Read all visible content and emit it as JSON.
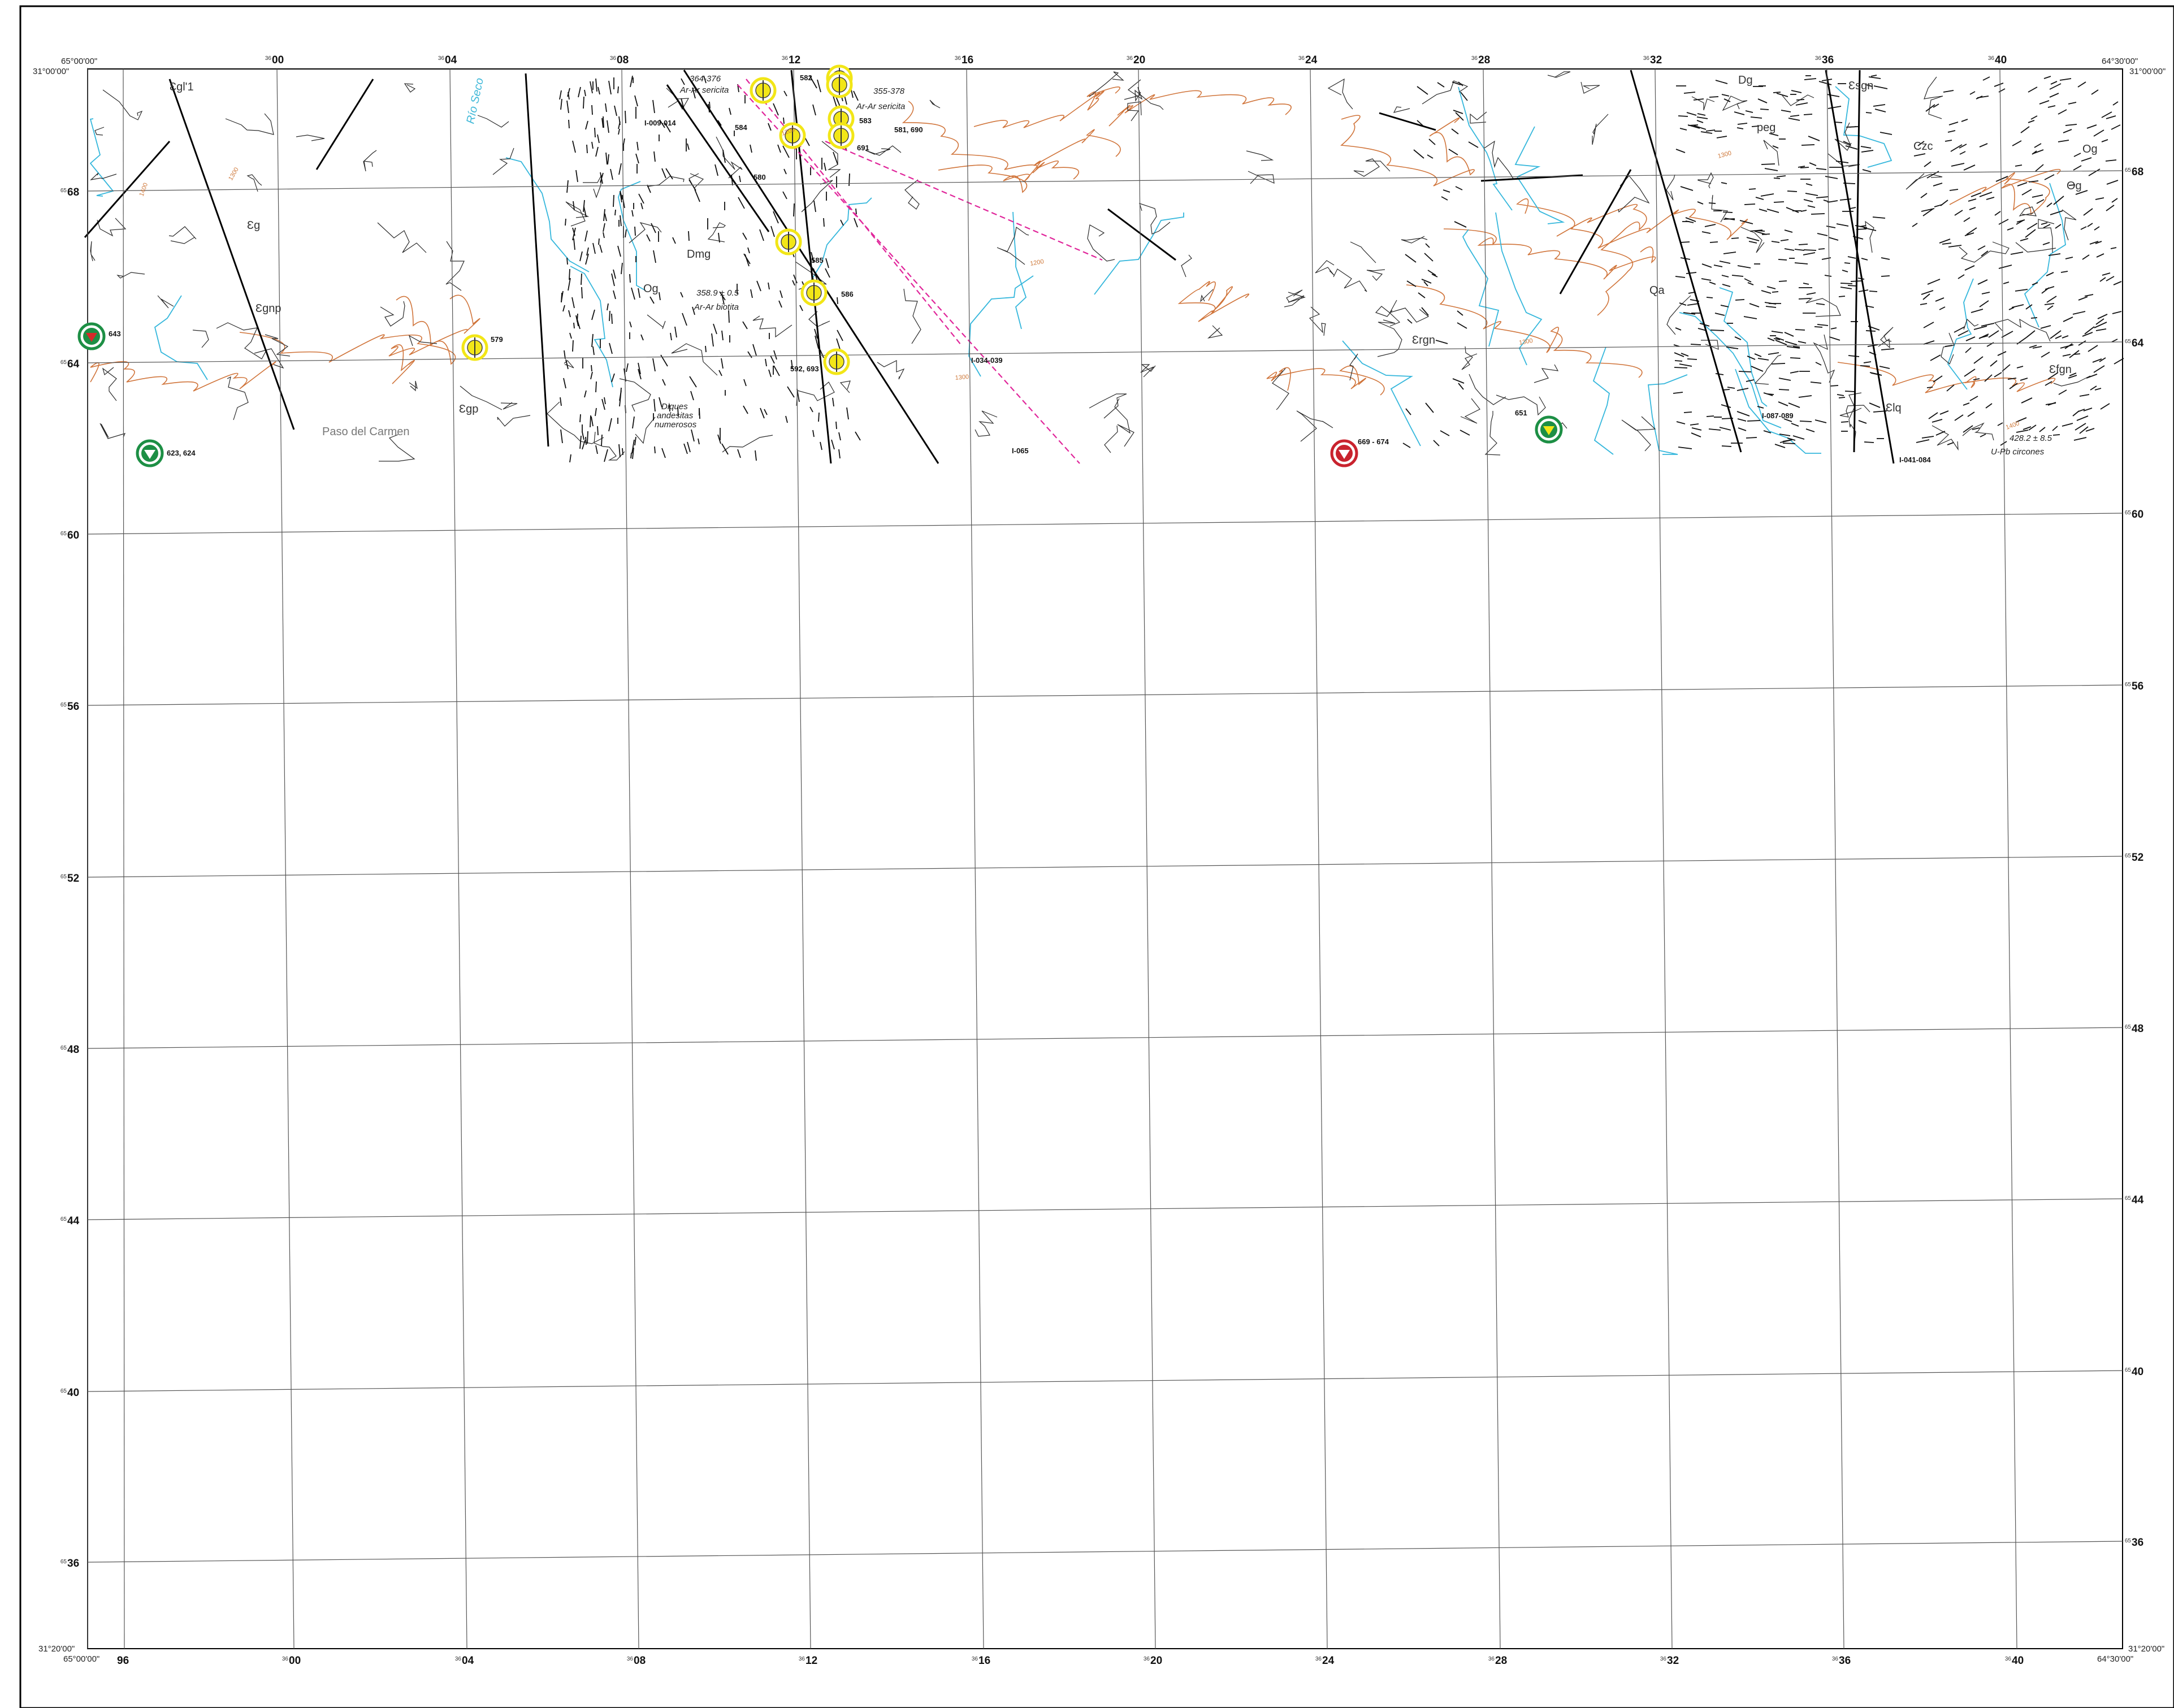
{
  "map": {
    "corner_coords": {
      "top_left_lon": "65°00'00\"",
      "top_left_lat": "31°00'00\"",
      "top_right_lon": "64°30'00\"",
      "top_right_lat": "31°00'00\"",
      "bottom_left_lat": "31°20'00\"",
      "bottom_left_lon": "65°00'00\"",
      "bottom_right_lat": "31°20'00\"",
      "bottom_right_lon": "64°30'00\""
    },
    "easting_prefix": "36",
    "northing_prefix": "65",
    "eastings_top": [
      "00",
      "04",
      "08",
      "12",
      "16",
      "20",
      "24",
      "28",
      "32",
      "36",
      "40"
    ],
    "eastings_bottom": [
      "96",
      "00",
      "04",
      "08",
      "12",
      "16",
      "20",
      "24",
      "28",
      "32",
      "36",
      "40"
    ],
    "northings": [
      "68",
      "64",
      "60",
      "56",
      "52",
      "48",
      "44",
      "40",
      "36"
    ],
    "units": [
      {
        "id": "cg1",
        "text": "Ɛgl'1"
      },
      {
        "id": "cg",
        "text": "Ɛg"
      },
      {
        "id": "cgnp",
        "text": "Ɛgnp"
      },
      {
        "id": "cgp",
        "text": "Ɛgp"
      },
      {
        "id": "dmg",
        "text": "Dmg"
      },
      {
        "id": "og",
        "text": "Og"
      },
      {
        "id": "crgn",
        "text": "Ɛrgn"
      },
      {
        "id": "csgn",
        "text": "Ɛsgn"
      },
      {
        "id": "czc",
        "text": "Czc"
      },
      {
        "id": "peg",
        "text": "peg"
      },
      {
        "id": "og2",
        "text": "Og"
      },
      {
        "id": "cfgn",
        "text": "Ɛfgn"
      },
      {
        "id": "clq",
        "text": "Ɛlq"
      },
      {
        "id": "dg",
        "text": "Dg"
      },
      {
        "id": "og3",
        "text": "Og"
      },
      {
        "id": "qa",
        "text": "Qa"
      }
    ],
    "places": [
      {
        "id": "paso-carmen",
        "text": "Paso del Carmen"
      }
    ],
    "rivers": [
      {
        "id": "rio-seco",
        "text": "Río Seco"
      }
    ],
    "annotations": [
      {
        "id": "diques",
        "lines": [
          "Diques",
          "andesitas",
          "numerosos"
        ]
      },
      {
        "id": "age1",
        "text": "364-376"
      },
      {
        "id": "age1b",
        "text": "Ar-Ar  sericita"
      },
      {
        "id": "age2",
        "text": "355-378"
      },
      {
        "id": "age2b",
        "text": "Ar-Ar  sericita"
      },
      {
        "id": "age3",
        "text": "358.9 ± 0.5"
      },
      {
        "id": "age3b",
        "text": "Ar-Ar  biotita"
      },
      {
        "id": "age4",
        "text": "428.2 ± 8.5"
      },
      {
        "id": "age4b",
        "text": "U-Pb circones"
      }
    ],
    "sample_labels": [
      {
        "id": "s582",
        "text": "582"
      },
      {
        "id": "s584",
        "text": "584"
      },
      {
        "id": "s580",
        "text": "580"
      },
      {
        "id": "s583",
        "text": "583"
      },
      {
        "id": "s581",
        "text": "581, 690"
      },
      {
        "id": "s691",
        "text": "691"
      },
      {
        "id": "s585",
        "text": "585"
      },
      {
        "id": "s586",
        "text": "586"
      },
      {
        "id": "s592",
        "text": "592, 693"
      },
      {
        "id": "s579",
        "text": "579"
      },
      {
        "id": "s643",
        "text": "643"
      },
      {
        "id": "s623",
        "text": "623, 624"
      },
      {
        "id": "s669",
        "text": "669 - 674"
      },
      {
        "id": "s651",
        "text": "651"
      },
      {
        "id": "s1009",
        "text": "I-009-014"
      },
      {
        "id": "s1034",
        "text": "I-034-039"
      },
      {
        "id": "s1065",
        "text": "I-065"
      },
      {
        "id": "s1087",
        "text": "I-087-089"
      },
      {
        "id": "s1041",
        "text": "I-041-084"
      }
    ],
    "contour_labels": [
      "1200",
      "1200",
      "1400",
      "1300",
      "1300",
      "1300",
      "1400",
      "1300"
    ],
    "symbol_kinds": {
      "yellow": "mineral-occurrence",
      "green": "sample-site",
      "red": "sample-site-alt"
    },
    "colors": {
      "grid": "#555555",
      "frame": "#000000",
      "contour": "#d0743a",
      "river": "#35b7dc",
      "geology": "#2a2a2a",
      "dashed_fault": "#e0259a",
      "yellow_symbol": "#f2e617",
      "green_symbol": "#1d8f45",
      "red_symbol": "#c9232e"
    }
  }
}
